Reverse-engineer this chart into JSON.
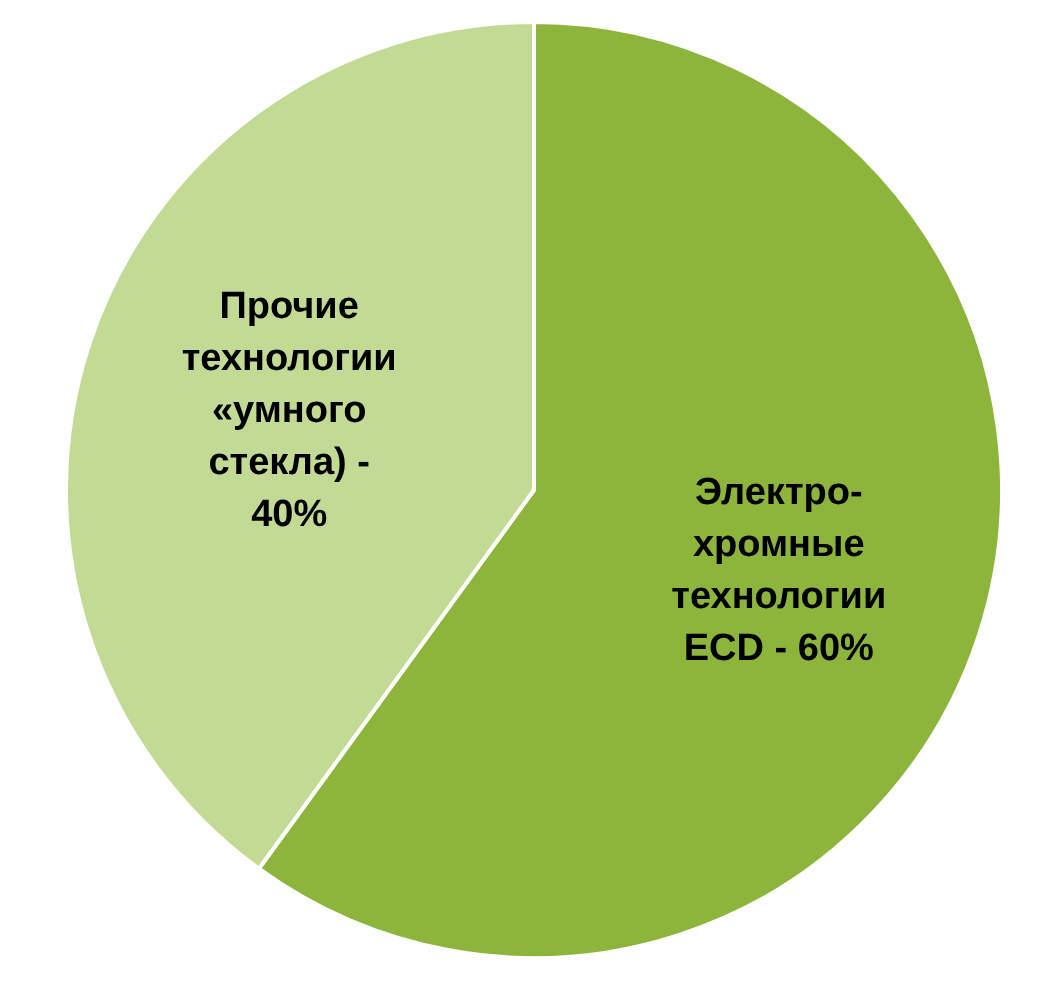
{
  "chart_data": {
    "type": "pie",
    "categories": [
      "Электро-хромные технологии ECD - 60%",
      "Прочие технологии «умного стекла) - 40%"
    ],
    "values": [
      60,
      40
    ],
    "colors": [
      "#8db53c",
      "#c3da95"
    ]
  }
}
